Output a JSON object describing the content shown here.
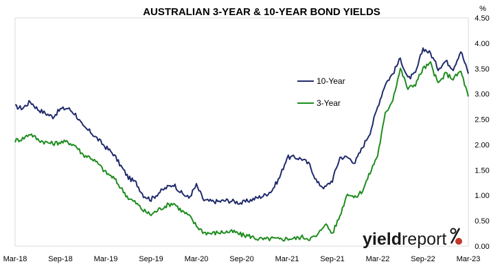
{
  "chart_data": {
    "type": "line",
    "title": "AUSTRALIAN 3-YEAR & 10-YEAR BOND YIELDS",
    "unit_label": "%",
    "xlabel": "",
    "ylabel": "",
    "ylim": [
      0,
      4.5
    ],
    "yticks": [
      "0.00",
      "0.50",
      "1.00",
      "1.50",
      "2.00",
      "2.50",
      "3.00",
      "3.50",
      "4.00",
      "4.50"
    ],
    "xticks": [
      "Mar-18",
      "Sep-18",
      "Mar-19",
      "Sep-19",
      "Mar-20",
      "Sep-20",
      "Mar-21",
      "Sep-21",
      "Mar-22",
      "Sep-22",
      "Mar-23"
    ],
    "yaxis_side": "right",
    "grid": false,
    "legend_position": "center-right",
    "series": [
      {
        "name": "10-Year",
        "color": "#1f2a6b",
        "x": [
          "2018-03",
          "2018-04",
          "2018-05",
          "2018-06",
          "2018-07",
          "2018-08",
          "2018-09",
          "2018-10",
          "2018-11",
          "2018-12",
          "2019-01",
          "2019-02",
          "2019-03",
          "2019-04",
          "2019-05",
          "2019-06",
          "2019-07",
          "2019-08",
          "2019-09",
          "2019-10",
          "2019-11",
          "2019-12",
          "2020-01",
          "2020-02",
          "2020-03",
          "2020-04",
          "2020-05",
          "2020-06",
          "2020-07",
          "2020-08",
          "2020-09",
          "2020-10",
          "2020-11",
          "2020-12",
          "2021-01",
          "2021-02",
          "2021-03",
          "2021-04",
          "2021-05",
          "2021-06",
          "2021-07",
          "2021-08",
          "2021-09",
          "2021-10",
          "2021-11",
          "2021-12",
          "2022-01",
          "2022-02",
          "2022-03",
          "2022-04",
          "2022-05",
          "2022-06",
          "2022-07",
          "2022-08",
          "2022-09",
          "2022-10",
          "2022-11",
          "2022-12",
          "2023-01",
          "2023-02",
          "2023-03"
        ],
        "values": [
          2.75,
          2.72,
          2.85,
          2.7,
          2.62,
          2.55,
          2.7,
          2.72,
          2.6,
          2.35,
          2.25,
          2.1,
          1.95,
          1.82,
          1.58,
          1.35,
          1.25,
          1.0,
          0.92,
          1.05,
          1.15,
          1.22,
          1.05,
          0.95,
          1.2,
          0.9,
          0.88,
          0.88,
          0.9,
          0.88,
          0.85,
          0.9,
          0.95,
          1.0,
          1.1,
          1.35,
          1.75,
          1.75,
          1.72,
          1.6,
          1.25,
          1.15,
          1.3,
          1.75,
          1.75,
          1.65,
          1.95,
          2.25,
          2.75,
          3.2,
          3.4,
          3.7,
          3.3,
          3.4,
          3.9,
          3.8,
          3.5,
          3.65,
          3.5,
          3.85,
          3.4
        ]
      },
      {
        "name": "3-Year",
        "color": "#1e8c1e",
        "x": [
          "2018-03",
          "2018-04",
          "2018-05",
          "2018-06",
          "2018-07",
          "2018-08",
          "2018-09",
          "2018-10",
          "2018-11",
          "2018-12",
          "2019-01",
          "2019-02",
          "2019-03",
          "2019-04",
          "2019-05",
          "2019-06",
          "2019-07",
          "2019-08",
          "2019-09",
          "2019-10",
          "2019-11",
          "2019-12",
          "2020-01",
          "2020-02",
          "2020-03",
          "2020-04",
          "2020-05",
          "2020-06",
          "2020-07",
          "2020-08",
          "2020-09",
          "2020-10",
          "2020-11",
          "2020-12",
          "2021-01",
          "2021-02",
          "2021-03",
          "2021-04",
          "2021-05",
          "2021-06",
          "2021-07",
          "2021-08",
          "2021-09",
          "2021-10",
          "2021-11",
          "2021-12",
          "2022-01",
          "2022-02",
          "2022-03",
          "2022-04",
          "2022-05",
          "2022-06",
          "2022-07",
          "2022-08",
          "2022-09",
          "2022-10",
          "2022-11",
          "2022-12",
          "2023-01",
          "2023-02",
          "2023-03"
        ],
        "values": [
          2.08,
          2.12,
          2.22,
          2.1,
          2.05,
          2.02,
          2.05,
          2.05,
          1.98,
          1.8,
          1.75,
          1.62,
          1.45,
          1.35,
          1.15,
          0.95,
          0.85,
          0.7,
          0.62,
          0.72,
          0.8,
          0.85,
          0.7,
          0.6,
          0.4,
          0.27,
          0.25,
          0.27,
          0.28,
          0.28,
          0.22,
          0.2,
          0.15,
          0.13,
          0.15,
          0.13,
          0.15,
          0.15,
          0.18,
          0.15,
          0.2,
          0.45,
          0.25,
          0.6,
          1.05,
          0.95,
          1.1,
          1.45,
          1.8,
          2.6,
          2.9,
          3.5,
          3.1,
          3.2,
          3.5,
          3.6,
          3.2,
          3.4,
          3.3,
          3.45,
          2.95
        ]
      }
    ]
  },
  "logo": {
    "bold_text": "yield",
    "light_text": "report",
    "symbol": "%"
  }
}
